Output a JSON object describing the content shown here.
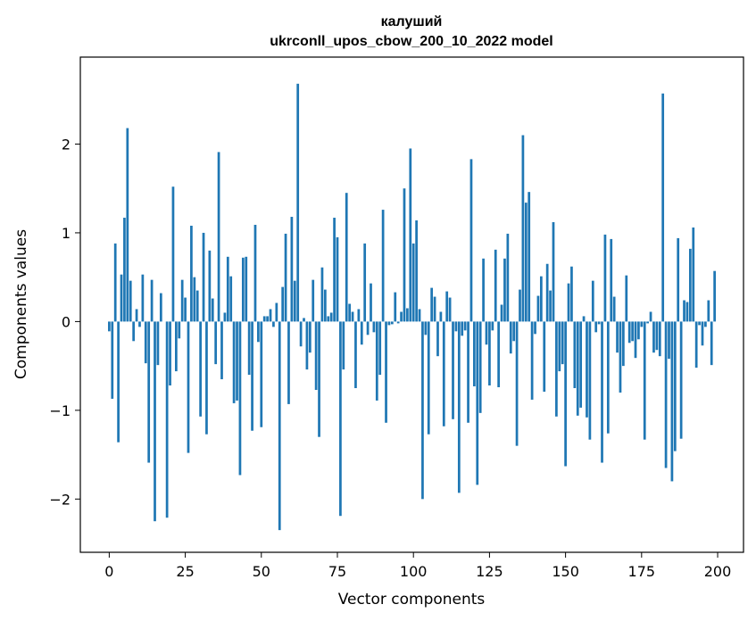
{
  "chart_data": {
    "type": "bar",
    "title": [
      "калуший",
      "ukrconll_upos_cbow_200_10_2022 model"
    ],
    "xlabel": "Vector components",
    "ylabel": "Components values",
    "xlim": [
      -9.5,
      208.5
    ],
    "ylim": [
      -2.6,
      2.98
    ],
    "xticks": [
      0,
      25,
      50,
      75,
      100,
      125,
      150,
      175,
      200
    ],
    "yticks": [
      -2,
      -1,
      0,
      1,
      2
    ],
    "ytick_labels": [
      "−2",
      "−1",
      "0",
      "1",
      "2"
    ],
    "grid": false,
    "bar_color": "#1f77b4",
    "x": [
      0,
      1,
      2,
      3,
      4,
      5,
      6,
      7,
      8,
      9,
      10,
      11,
      12,
      13,
      14,
      15,
      16,
      17,
      18,
      19,
      20,
      21,
      22,
      23,
      24,
      25,
      26,
      27,
      28,
      29,
      30,
      31,
      32,
      33,
      34,
      35,
      36,
      37,
      38,
      39,
      40,
      41,
      42,
      43,
      44,
      45,
      46,
      47,
      48,
      49,
      50,
      51,
      52,
      53,
      54,
      55,
      56,
      57,
      58,
      59,
      60,
      61,
      62,
      63,
      64,
      65,
      66,
      67,
      68,
      69,
      70,
      71,
      72,
      73,
      74,
      75,
      76,
      77,
      78,
      79,
      80,
      81,
      82,
      83,
      84,
      85,
      86,
      87,
      88,
      89,
      90,
      91,
      92,
      93,
      94,
      95,
      96,
      97,
      98,
      99,
      100,
      101,
      102,
      103,
      104,
      105,
      106,
      107,
      108,
      109,
      110,
      111,
      112,
      113,
      114,
      115,
      116,
      117,
      118,
      119,
      120,
      121,
      122,
      123,
      124,
      125,
      126,
      127,
      128,
      129,
      130,
      131,
      132,
      133,
      134,
      135,
      136,
      137,
      138,
      139,
      140,
      141,
      142,
      143,
      144,
      145,
      146,
      147,
      148,
      149,
      150,
      151,
      152,
      153,
      154,
      155,
      156,
      157,
      158,
      159,
      160,
      161,
      162,
      163,
      164,
      165,
      166,
      167,
      168,
      169,
      170,
      171,
      172,
      173,
      174,
      175,
      176,
      177,
      178,
      179,
      180,
      181,
      182,
      183,
      184,
      185,
      186,
      187,
      188,
      189,
      190,
      191,
      192,
      193,
      194,
      195,
      196,
      197,
      198,
      199
    ],
    "values": [
      -0.11,
      -0.87,
      0.88,
      -1.36,
      0.53,
      1.17,
      2.18,
      0.46,
      -0.22,
      0.14,
      -0.06,
      0.53,
      -0.47,
      -1.59,
      0.47,
      -2.25,
      -0.49,
      0.32,
      0.0,
      -2.21,
      -0.72,
      1.52,
      -0.56,
      -0.19,
      0.47,
      0.27,
      -1.48,
      1.08,
      0.5,
      0.35,
      -1.07,
      1.0,
      -1.27,
      0.8,
      0.26,
      -0.48,
      1.91,
      -0.65,
      0.1,
      0.73,
      0.51,
      -0.92,
      -0.89,
      -1.73,
      0.72,
      0.73,
      -0.6,
      -1.23,
      1.09,
      -0.23,
      -1.19,
      0.06,
      0.06,
      0.14,
      -0.06,
      0.21,
      -2.35,
      0.39,
      0.99,
      -0.93,
      1.18,
      0.46,
      2.68,
      -0.28,
      0.04,
      -0.54,
      -0.35,
      0.47,
      -0.77,
      -1.3,
      0.61,
      0.36,
      0.06,
      0.1,
      1.17,
      0.95,
      -2.19,
      -0.54,
      1.45,
      0.2,
      0.11,
      -0.75,
      0.14,
      -0.26,
      0.88,
      -0.15,
      0.43,
      -0.12,
      -0.89,
      -0.6,
      1.26,
      -1.14,
      -0.04,
      -0.03,
      0.33,
      -0.02,
      0.11,
      1.5,
      0.15,
      1.95,
      0.88,
      1.14,
      0.14,
      -2.0,
      -0.15,
      -1.27,
      0.38,
      0.28,
      -0.39,
      0.11,
      -1.18,
      0.34,
      0.27,
      -1.1,
      -0.11,
      -1.93,
      -0.16,
      -0.1,
      -1.14,
      1.83,
      -0.73,
      -1.84,
      -1.03,
      0.71,
      -0.26,
      -0.72,
      -0.1,
      0.81,
      -0.74,
      0.19,
      0.71,
      0.99,
      -0.36,
      -0.22,
      -1.4,
      0.36,
      2.1,
      1.34,
      1.46,
      -0.88,
      -0.14,
      0.29,
      0.51,
      -0.79,
      0.65,
      0.35,
      1.12,
      -1.07,
      -0.56,
      -0.48,
      -1.63,
      0.43,
      0.62,
      -0.75,
      -1.06,
      -0.97,
      0.06,
      -1.08,
      -1.33,
      0.46,
      -0.12,
      -0.03,
      -1.59,
      0.98,
      -1.26,
      0.93,
      0.28,
      -0.35,
      -0.8,
      -0.5,
      0.52,
      -0.24,
      -0.22,
      -0.41,
      -0.2,
      -0.06,
      -1.33,
      -0.02,
      0.11,
      -0.35,
      -0.32,
      -0.39,
      2.57,
      -1.65,
      -0.42,
      -1.8,
      -1.46,
      0.94,
      -1.32,
      0.24,
      0.22,
      0.82,
      1.06,
      -0.52,
      -0.04,
      -0.27,
      -0.06,
      0.24,
      -0.49,
      0.57
    ]
  }
}
